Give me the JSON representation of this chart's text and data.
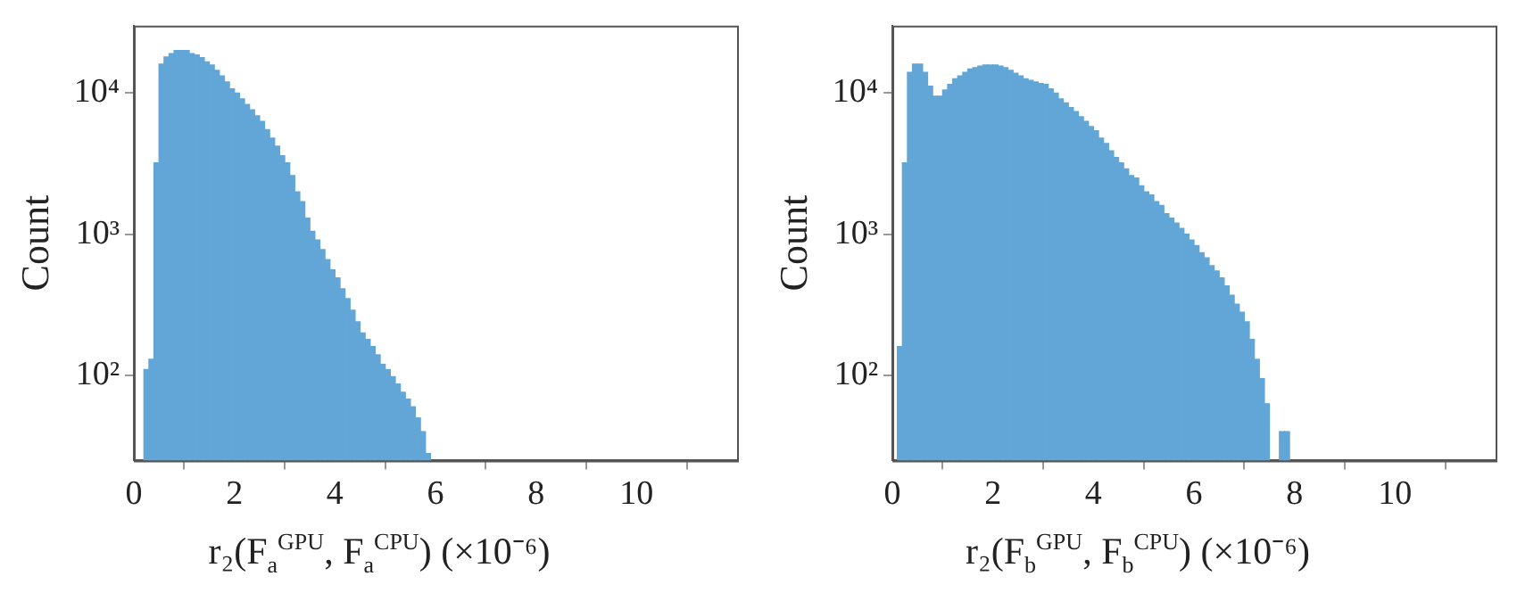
{
  "chart_data": [
    {
      "type": "histogram",
      "xlabel": "r₂(F$_{a}$$^{GPU}$, F$_{a}$$^{CPU}$) (×10⁻⁶)",
      "ylabel": "Count",
      "color": "#61a6d6",
      "bins": [
        0,
        0.1,
        0.2,
        0.3,
        0.4,
        0.5,
        0.6,
        0.7,
        0.8,
        0.9,
        1,
        1.1,
        1.2,
        1.3,
        1.4,
        1.5,
        1.6,
        1.7,
        1.8,
        1.9,
        2,
        2.1,
        2.2,
        2.3,
        2.4,
        2.5,
        2.6,
        2.7,
        2.8,
        2.9,
        3,
        3.1,
        3.2,
        3.3,
        3.4,
        3.5,
        3.6,
        3.7,
        3.8,
        3.9,
        4,
        4.1,
        4.2,
        4.3,
        4.4,
        4.5,
        4.6,
        4.7,
        4.8,
        4.9,
        5,
        5.1,
        5.2,
        5.3,
        5.4,
        5.5,
        5.6,
        5.7,
        5.8,
        5.9,
        6
      ],
      "values": [
        null,
        null,
        110,
        130,
        3200,
        16000,
        18000,
        19000,
        20000,
        20000,
        20000,
        19000,
        18600,
        17800,
        16600,
        15800,
        14500,
        13200,
        12000,
        10700,
        10000,
        9100,
        8300,
        7600,
        6900,
        6300,
        5500,
        4800,
        4200,
        3600,
        3200,
        2600,
        2000,
        1700,
        1300,
        1050,
        910,
        780,
        660,
        560,
        490,
        410,
        350,
        290,
        240,
        200,
        180,
        160,
        140,
        120,
        110,
        98,
        87,
        76,
        68,
        60,
        50,
        40,
        28,
        null
      ],
      "xlim": [
        0,
        12
      ],
      "xticks": [
        0,
        2,
        4,
        6,
        8,
        10
      ],
      "ylim": [
        25,
        30000
      ],
      "yticks": [
        {
          "value": 100,
          "label": "10²"
        },
        {
          "value": 1000,
          "label": "10³"
        },
        {
          "value": 10000,
          "label": "10⁴"
        }
      ],
      "log": true,
      "grid": false
    },
    {
      "type": "histogram",
      "xlabel": "r₂(F$_{b}$$^{GPU}$, F$_{b}$$^{CPU}$) (×10⁻⁶)",
      "ylabel": "Count",
      "color": "#61a6d6",
      "bins": [
        0,
        0.1,
        0.2,
        0.3,
        0.4,
        0.5,
        0.6,
        0.7,
        0.8,
        0.9,
        1,
        1.1,
        1.2,
        1.3,
        1.4,
        1.5,
        1.6,
        1.7,
        1.8,
        1.9,
        2,
        2.1,
        2.2,
        2.3,
        2.4,
        2.5,
        2.6,
        2.7,
        2.8,
        2.9,
        3,
        3.1,
        3.2,
        3.3,
        3.4,
        3.5,
        3.6,
        3.7,
        3.8,
        3.9,
        4,
        4.1,
        4.2,
        4.3,
        4.4,
        4.5,
        4.6,
        4.7,
        4.8,
        4.9,
        5,
        5.1,
        5.2,
        5.3,
        5.4,
        5.5,
        5.6,
        5.7,
        5.8,
        5.9,
        6,
        6.1,
        6.2,
        6.3,
        6.4,
        6.5,
        6.6,
        6.7,
        6.8,
        6.9,
        7,
        7.1,
        7.2,
        7.3,
        7.4,
        7.5,
        7.6,
        7.7,
        7.8,
        7.9,
        8
      ],
      "values": [
        null,
        160,
        3200,
        14000,
        16000,
        16000,
        14000,
        11200,
        9500,
        9500,
        10500,
        11500,
        12600,
        13200,
        14000,
        14800,
        15100,
        15500,
        15800,
        15800,
        15800,
        15500,
        15100,
        14500,
        13800,
        13200,
        12600,
        12300,
        12000,
        11700,
        11500,
        10700,
        10000,
        9100,
        8500,
        7900,
        7400,
        6800,
        6300,
        5800,
        5400,
        4800,
        4400,
        3900,
        3500,
        3200,
        2900,
        2600,
        2500,
        2200,
        2000,
        1900,
        1700,
        1600,
        1400,
        1300,
        1200,
        1100,
        1000,
        910,
        830,
        740,
        680,
        600,
        550,
        490,
        430,
        370,
        320,
        280,
        240,
        180,
        130,
        95,
        63,
        null,
        null,
        40,
        40,
        null
      ],
      "xlim": [
        0,
        12
      ],
      "xticks": [
        0,
        2,
        4,
        6,
        8,
        10
      ],
      "ylim": [
        25,
        30000
      ],
      "yticks": [
        {
          "value": 100,
          "label": "10²"
        },
        {
          "value": 1000,
          "label": "10³"
        },
        {
          "value": 10000,
          "label": "10⁴"
        }
      ],
      "log": true,
      "grid": false
    }
  ]
}
